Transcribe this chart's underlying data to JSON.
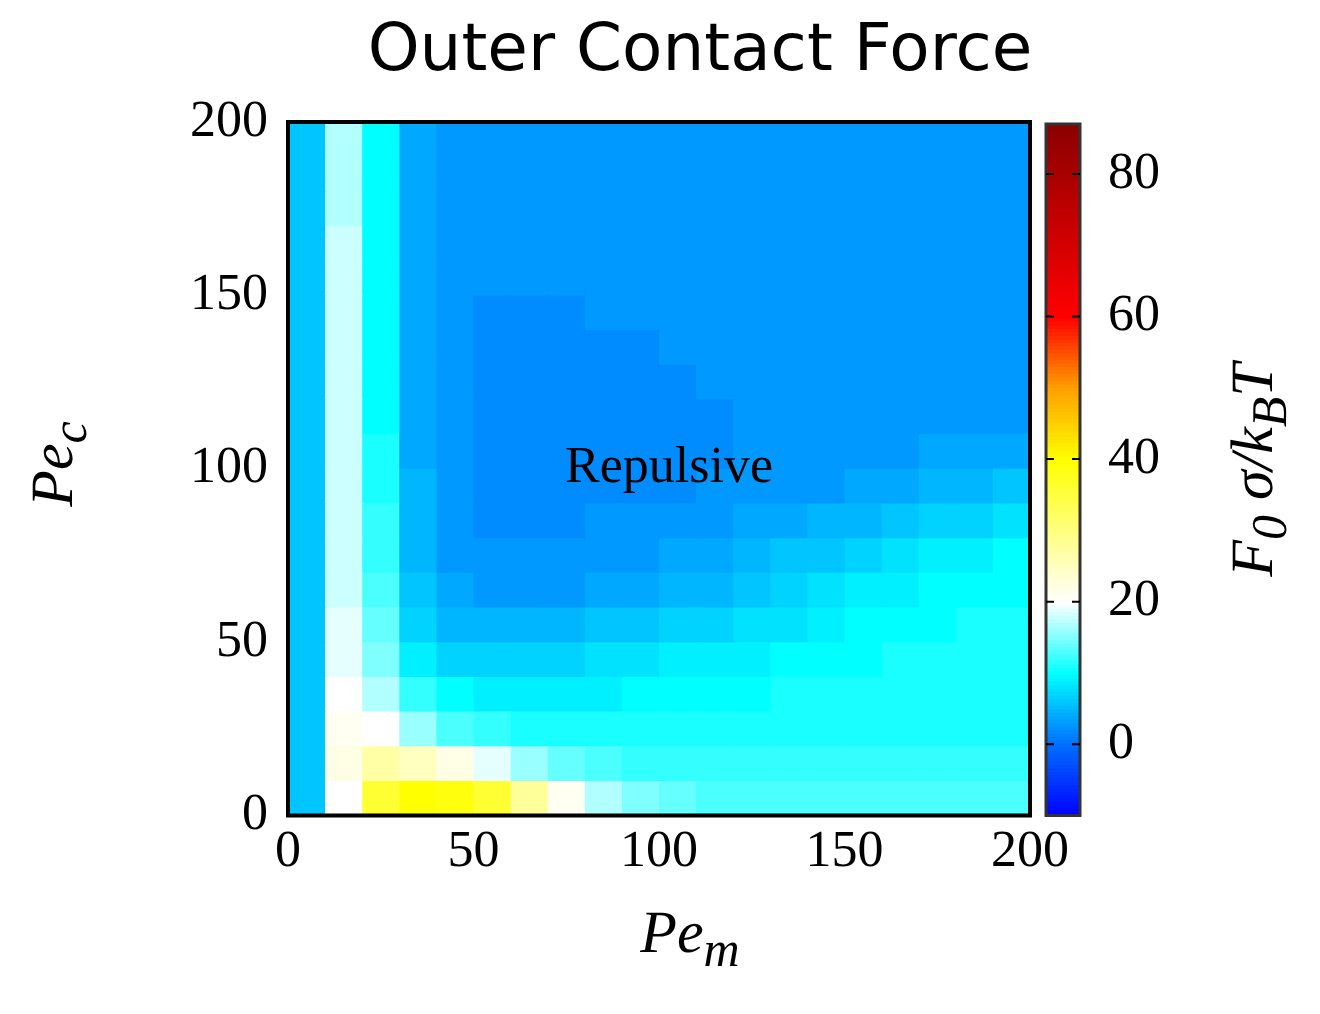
{
  "chart_data": {
    "type": "heatmap",
    "title": "Outer Contact Force",
    "xlabel": "Pe$_{m}$",
    "ylabel": "Pe$_{c}$",
    "clabel": "F$_{0}$ σ/k$_{B}$T",
    "annotations": [
      "Repulsive"
    ],
    "x": [
      5,
      15,
      25,
      35,
      45,
      55,
      65,
      75,
      85,
      95,
      105,
      115,
      125,
      135,
      145,
      155,
      165,
      175,
      185,
      195
    ],
    "y": [
      195,
      185,
      175,
      165,
      155,
      145,
      135,
      125,
      115,
      105,
      95,
      85,
      75,
      65,
      55,
      45,
      35,
      25,
      15,
      5
    ],
    "xlim": [
      0,
      200
    ],
    "xticks": [
      0,
      50,
      100,
      150,
      200
    ],
    "ylim": [
      0,
      200
    ],
    "yticks": [
      0,
      50,
      100,
      150,
      200
    ],
    "clim": [
      -10,
      87
    ],
    "cticks": [
      0,
      20,
      40,
      60,
      80
    ],
    "cells": [
      [
        6,
        17,
        10,
        4,
        3,
        3,
        3,
        3,
        3,
        3,
        3,
        3,
        3,
        3,
        3,
        3,
        3,
        3,
        3,
        3
      ],
      [
        6,
        17,
        10,
        4,
        3,
        3,
        3,
        3,
        3,
        3,
        3,
        3,
        3,
        3,
        3,
        3,
        3,
        3,
        3,
        3
      ],
      [
        6,
        17,
        10,
        4,
        3,
        3,
        3,
        3,
        3,
        3,
        3,
        3,
        3,
        3,
        3,
        3,
        3,
        3,
        3,
        3
      ],
      [
        6,
        18,
        10,
        4,
        3,
        3,
        3,
        3,
        3,
        3,
        3,
        3,
        3,
        3,
        3,
        3,
        3,
        3,
        3,
        3
      ],
      [
        6,
        18,
        10,
        4,
        3,
        3,
        3,
        3,
        3,
        3,
        3,
        3,
        3,
        3,
        3,
        3,
        3,
        3,
        3,
        3
      ],
      [
        6,
        18,
        10,
        4,
        3,
        2,
        2,
        2,
        3,
        3,
        3,
        3,
        3,
        3,
        3,
        3,
        3,
        3,
        3,
        3
      ],
      [
        6,
        18,
        10,
        4,
        3,
        2,
        2,
        2,
        2,
        2,
        3,
        3,
        3,
        3,
        3,
        3,
        3,
        3,
        3,
        3
      ],
      [
        6,
        18,
        10,
        4,
        3,
        2,
        2,
        2,
        2,
        2,
        2,
        3,
        3,
        3,
        3,
        3,
        3,
        3,
        3,
        3
      ],
      [
        6,
        18,
        10,
        4,
        3,
        2,
        2,
        2,
        2,
        2,
        2,
        2,
        3,
        3,
        3,
        3,
        3,
        3,
        3,
        3
      ],
      [
        6,
        18,
        11,
        4,
        3,
        2,
        2,
        2,
        2,
        2,
        2,
        2,
        3,
        3,
        3,
        3,
        3,
        4,
        4,
        4
      ],
      [
        6,
        18,
        11,
        5,
        3,
        2,
        2,
        2,
        2,
        2,
        2,
        3,
        3,
        3,
        3,
        4,
        4,
        5,
        5,
        6
      ],
      [
        6,
        18,
        12,
        5,
        3,
        2,
        2,
        2,
        3,
        3,
        3,
        3,
        4,
        4,
        5,
        5,
        6,
        7,
        7,
        8
      ],
      [
        6,
        18,
        12,
        5,
        3,
        3,
        3,
        3,
        3,
        3,
        4,
        4,
        5,
        6,
        6,
        7,
        8,
        9,
        9,
        10
      ],
      [
        6,
        18,
        13,
        6,
        4,
        3,
        3,
        3,
        4,
        4,
        5,
        5,
        6,
        7,
        8,
        9,
        9,
        10,
        10,
        10
      ],
      [
        6,
        19,
        14,
        7,
        5,
        5,
        5,
        5,
        6,
        6,
        7,
        7,
        8,
        8,
        9,
        10,
        10,
        10,
        11,
        11
      ],
      [
        6,
        19,
        15,
        9,
        7,
        7,
        7,
        7,
        8,
        8,
        9,
        9,
        9,
        10,
        10,
        10,
        11,
        11,
        11,
        11
      ],
      [
        6,
        20,
        17,
        12,
        10,
        9,
        9,
        9,
        9,
        10,
        10,
        10,
        10,
        11,
        11,
        11,
        11,
        11,
        11,
        11
      ],
      [
        6,
        21,
        20,
        16,
        13,
        12,
        11,
        11,
        11,
        11,
        11,
        11,
        11,
        11,
        11,
        11,
        11,
        11,
        11,
        11
      ],
      [
        6,
        22,
        27,
        25,
        22,
        19,
        16,
        14,
        13,
        12,
        12,
        12,
        12,
        12,
        12,
        12,
        12,
        12,
        12,
        12
      ],
      [
        6,
        20,
        36,
        40,
        39,
        36,
        28,
        21,
        17,
        15,
        14,
        13,
        13,
        13,
        13,
        13,
        13,
        13,
        13,
        13
      ]
    ]
  }
}
